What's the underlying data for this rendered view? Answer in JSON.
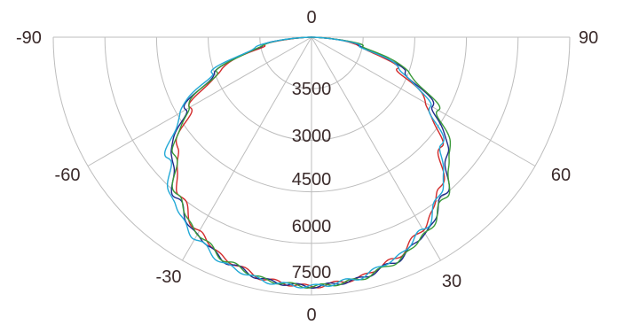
{
  "chart_data": {
    "type": "line",
    "coordinate_system": "polar",
    "angle_range_deg": [
      -90,
      90
    ],
    "angle_tick_labels": [
      {
        "value": -90,
        "label": "-90"
      },
      {
        "value": -60,
        "label": "-60"
      },
      {
        "value": -30,
        "label": "-30"
      },
      {
        "value": 0,
        "label": "0"
      },
      {
        "value": 30,
        "label": "30"
      },
      {
        "value": 60,
        "label": "60"
      },
      {
        "value": 90,
        "label": "90"
      }
    ],
    "top_label": "0",
    "radial_tick_labels": [
      "3500",
      "3000",
      "4500",
      "6000",
      "7500"
    ],
    "rings": 5,
    "spokes_deg": [
      -90,
      -60,
      -30,
      0,
      30,
      60,
      90
    ],
    "grid": true,
    "legend": "none",
    "series": [
      {
        "color": "#d22b2b",
        "angles": [
          -90,
          -80,
          -70,
          -60,
          -50,
          -40,
          -30,
          -20,
          -10,
          0,
          10,
          20,
          30,
          40,
          50,
          60,
          70,
          80,
          90
        ],
        "values": [
          0,
          1400,
          2800,
          4050,
          5100,
          5950,
          6550,
          6950,
          7180,
          7250,
          7150,
          6900,
          6450,
          5800,
          4900,
          3850,
          2650,
          1350,
          0
        ]
      },
      {
        "color": "#1f2a8a",
        "angles": [
          -90,
          -80,
          -70,
          -60,
          -50,
          -40,
          -30,
          -20,
          -10,
          0,
          10,
          20,
          30,
          40,
          50,
          60,
          70,
          80,
          90
        ],
        "values": [
          0,
          1500,
          2950,
          4250,
          5300,
          6100,
          6650,
          7000,
          7200,
          7250,
          7180,
          6980,
          6600,
          6000,
          5150,
          4100,
          2850,
          1450,
          0
        ]
      },
      {
        "color": "#3a9a3a",
        "angles": [
          -90,
          -80,
          -70,
          -60,
          -50,
          -40,
          -30,
          -20,
          -10,
          0,
          10,
          20,
          30,
          40,
          50,
          60,
          70,
          80,
          90
        ],
        "values": [
          0,
          1480,
          2900,
          4150,
          5200,
          6050,
          6600,
          6980,
          7190,
          7250,
          7190,
          7000,
          6620,
          6050,
          5250,
          4250,
          3000,
          1550,
          0
        ]
      },
      {
        "color": "#22a9d6",
        "angles": [
          -90,
          -80,
          -70,
          -60,
          -50,
          -40,
          -30,
          -20,
          -10,
          0,
          10,
          20,
          30,
          40,
          50,
          60,
          70,
          80,
          90
        ],
        "values": [
          0,
          1600,
          3100,
          4400,
          5450,
          6250,
          6750,
          7080,
          7230,
          7250,
          7150,
          6900,
          6480,
          5850,
          4950,
          3950,
          2750,
          1400,
          0
        ]
      }
    ]
  }
}
